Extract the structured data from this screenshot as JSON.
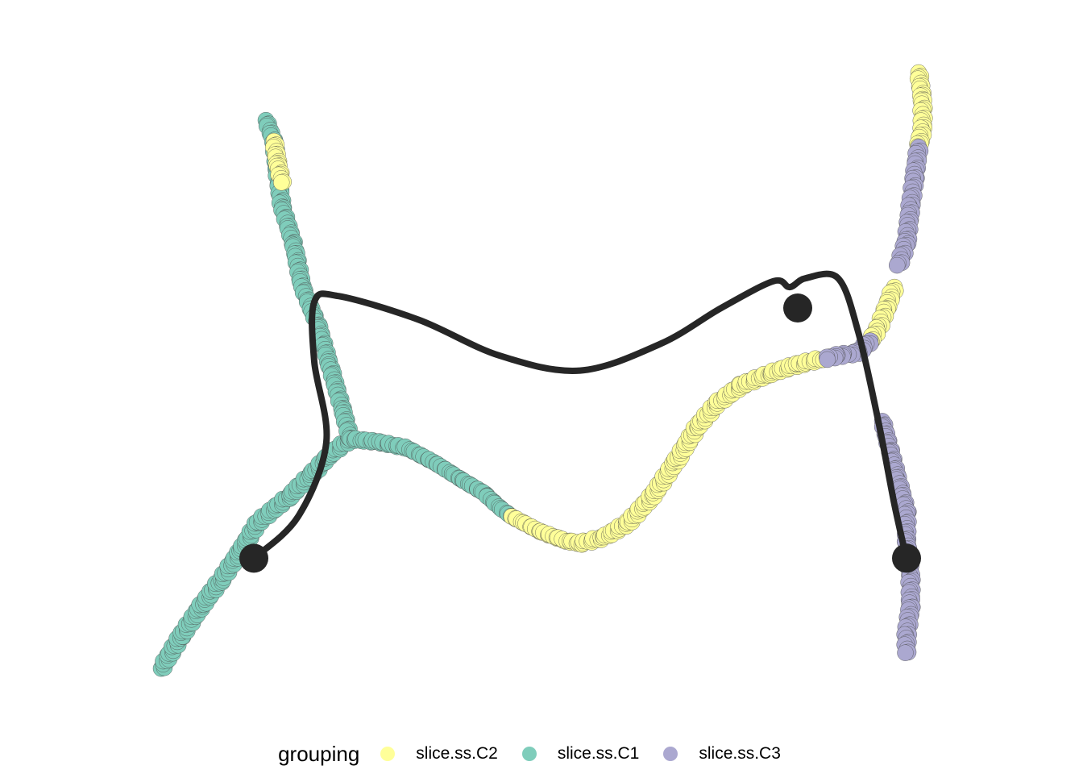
{
  "chart_data": {
    "type": "scatter",
    "title": "",
    "xlabel": "",
    "ylabel": "",
    "axes_visible": false,
    "grid": false,
    "legend_position": "bottom",
    "legend": {
      "title": "grouping",
      "entries": [
        {
          "label": "slice.ss.C2",
          "color": "#FFFF99"
        },
        {
          "label": "slice.ss.C1",
          "color": "#7FCDBB"
        },
        {
          "label": "slice.ss.C3",
          "color": "#ABA8D0"
        }
      ]
    },
    "series": [
      {
        "name": "slice.ss.C1",
        "color": "#7FCDBB",
        "segments": [
          [
            [
              -0.94,
              -0.93
            ],
            [
              -0.89,
              -0.82
            ],
            [
              -0.84,
              -0.72
            ],
            [
              -0.79,
              -0.63
            ],
            [
              -0.74,
              -0.53
            ],
            [
              -0.7,
              -0.44
            ],
            [
              -0.62,
              -0.35
            ],
            [
              -0.56,
              -0.27
            ],
            [
              -0.52,
              -0.21
            ],
            [
              -0.47,
              -0.16
            ]
          ],
          [
            [
              -0.68,
              0.91
            ],
            [
              -0.66,
              0.84
            ],
            [
              -0.65,
              0.72
            ],
            [
              -0.64,
              0.62
            ],
            [
              -0.61,
              0.49
            ],
            [
              -0.59,
              0.35
            ],
            [
              -0.55,
              0.22
            ],
            [
              -0.52,
              0.08
            ],
            [
              -0.49,
              -0.06
            ],
            [
              -0.47,
              -0.16
            ]
          ],
          [
            [
              -0.47,
              -0.16
            ],
            [
              -0.4,
              -0.17
            ],
            [
              -0.33,
              -0.19
            ],
            [
              -0.26,
              -0.24
            ],
            [
              -0.19,
              -0.3
            ],
            [
              -0.14,
              -0.34
            ],
            [
              -0.1,
              -0.39
            ],
            [
              -0.07,
              -0.42
            ]
          ]
        ]
      },
      {
        "name": "slice.ss.C2",
        "color": "#FFFF99",
        "segments": [
          [
            [
              -0.07,
              -0.42
            ],
            [
              0.0,
              -0.47
            ],
            [
              0.06,
              -0.5
            ],
            [
              0.1,
              -0.51
            ],
            [
              0.16,
              -0.49
            ],
            [
              0.22,
              -0.44
            ],
            [
              0.28,
              -0.35
            ],
            [
              0.34,
              -0.23
            ],
            [
              0.39,
              -0.12
            ],
            [
              0.44,
              -0.04
            ],
            [
              0.5,
              0.02
            ],
            [
              0.57,
              0.06
            ],
            [
              0.64,
              0.09
            ],
            [
              0.7,
              0.11
            ]
          ],
          [
            [
              0.94,
              1.07
            ],
            [
              0.95,
              0.98
            ],
            [
              0.95,
              0.88
            ],
            [
              0.94,
              0.82
            ]
          ],
          [
            [
              0.88,
              0.35
            ],
            [
              0.86,
              0.28
            ],
            [
              0.84,
              0.21
            ],
            [
              0.82,
              0.17
            ]
          ],
          [
            [
              -0.66,
              0.84
            ],
            [
              -0.65,
              0.76
            ],
            [
              -0.64,
              0.7
            ]
          ]
        ]
      },
      {
        "name": "slice.ss.C3",
        "color": "#ABA8D0",
        "segments": [
          [
            [
              0.94,
              0.82
            ],
            [
              0.93,
              0.72
            ],
            [
              0.92,
              0.62
            ],
            [
              0.91,
              0.5
            ],
            [
              0.89,
              0.42
            ]
          ],
          [
            [
              0.82,
              0.17
            ],
            [
              0.79,
              0.13
            ],
            [
              0.74,
              0.12
            ],
            [
              0.71,
              0.11
            ]
          ],
          [
            [
              0.85,
              -0.1
            ],
            [
              0.87,
              -0.2
            ],
            [
              0.89,
              -0.3
            ],
            [
              0.91,
              -0.4
            ],
            [
              0.91,
              -0.5
            ],
            [
              0.92,
              -0.62
            ],
            [
              0.92,
              -0.72
            ],
            [
              0.91,
              -0.82
            ],
            [
              0.91,
              -0.88
            ]
          ]
        ]
      }
    ],
    "trajectory": {
      "color": "#262626",
      "path": [
        [
          -0.71,
          -0.56
        ],
        [
          -0.6,
          -0.42
        ],
        [
          -0.53,
          -0.17
        ],
        [
          -0.56,
          0.1
        ],
        [
          -0.56,
          0.3
        ],
        [
          -0.5,
          0.32
        ],
        [
          -0.3,
          0.24
        ],
        [
          -0.1,
          0.12
        ],
        [
          0.1,
          0.07
        ],
        [
          0.3,
          0.16
        ],
        [
          0.45,
          0.28
        ],
        [
          0.58,
          0.37
        ],
        [
          0.62,
          0.35
        ],
        [
          0.66,
          0.38
        ],
        [
          0.74,
          0.38
        ],
        [
          0.79,
          0.2
        ],
        [
          0.84,
          -0.1
        ],
        [
          0.88,
          -0.38
        ],
        [
          0.91,
          -0.56
        ]
      ],
      "nodes": [
        [
          -0.71,
          -0.56
        ],
        [
          0.64,
          0.28
        ],
        [
          0.91,
          -0.56
        ]
      ]
    },
    "xlim": [
      -1,
      1
    ],
    "ylim": [
      -1,
      1.2
    ]
  }
}
